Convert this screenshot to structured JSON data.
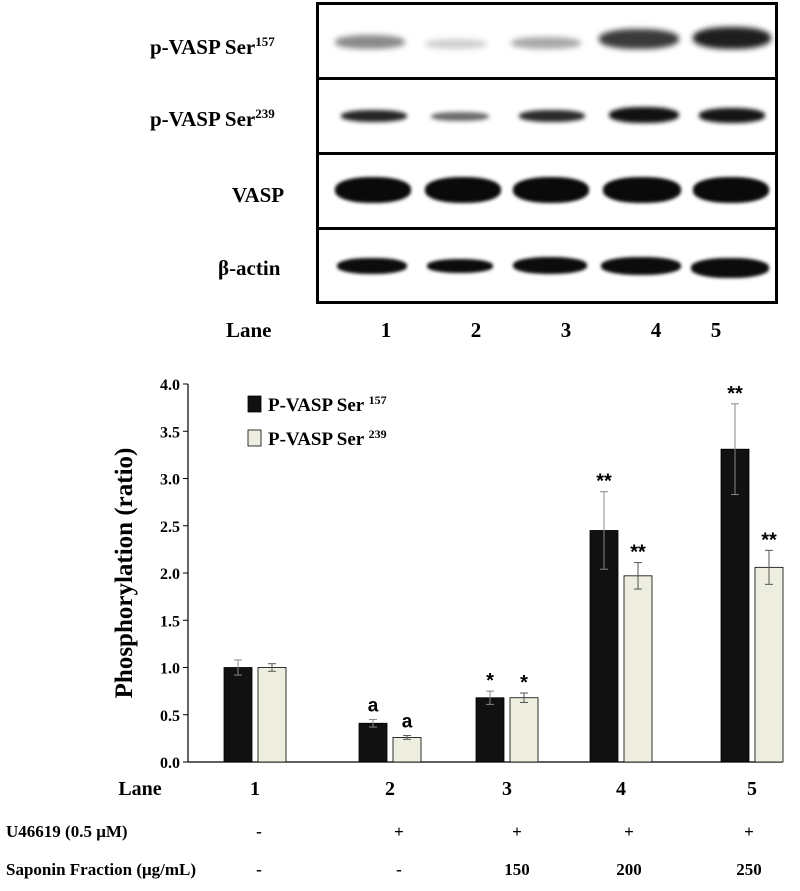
{
  "blot": {
    "rows": [
      {
        "label_main": "p-VASP Ser",
        "label_sup": "157"
      },
      {
        "label_main": "p-VASP Ser",
        "label_sup": "239"
      },
      {
        "label_main": "VASP",
        "label_sup": ""
      },
      {
        "label_main": "β-actin",
        "label_sup": ""
      }
    ],
    "lane_label": "Lane",
    "lanes": [
      "1",
      "2",
      "3",
      "4",
      "5"
    ]
  },
  "chart_data": {
    "type": "bar",
    "categories": [
      "1",
      "2",
      "3",
      "4",
      "5"
    ],
    "xlabel": "Lane",
    "ylabel": "Phosphorylation (ratio)",
    "ylim": [
      0,
      4.0
    ],
    "yticks": [
      "0.0",
      "0.5",
      "1.0",
      "1.5",
      "2.0",
      "2.5",
      "3.0",
      "3.5",
      "4.0"
    ],
    "grid": false,
    "legend_placement": "top-left",
    "series": [
      {
        "name_main": "P-VASP Ser",
        "name_sup": "157",
        "color": "#111111",
        "values": [
          1.0,
          0.41,
          0.68,
          2.45,
          3.31
        ],
        "errors": [
          0.08,
          0.04,
          0.07,
          0.41,
          0.48
        ],
        "annotations": [
          "",
          "a",
          "*",
          "**",
          "**"
        ]
      },
      {
        "name_main": "P-VASP Ser",
        "name_sup": "239",
        "color": "#eeeee0",
        "values": [
          1.0,
          0.26,
          0.68,
          1.97,
          2.06
        ],
        "errors": [
          0.04,
          0.02,
          0.05,
          0.14,
          0.18
        ],
        "annotations": [
          "",
          "a",
          "*",
          "**",
          "**"
        ]
      }
    ]
  },
  "treatments": [
    {
      "label": "U46619  (0.5 μM)",
      "values": [
        "-",
        "+",
        "+",
        "+",
        "+"
      ]
    },
    {
      "label": "Saponin Fraction (μg/mL)",
      "values": [
        "-",
        "-",
        "150",
        "200",
        "250"
      ]
    }
  ]
}
